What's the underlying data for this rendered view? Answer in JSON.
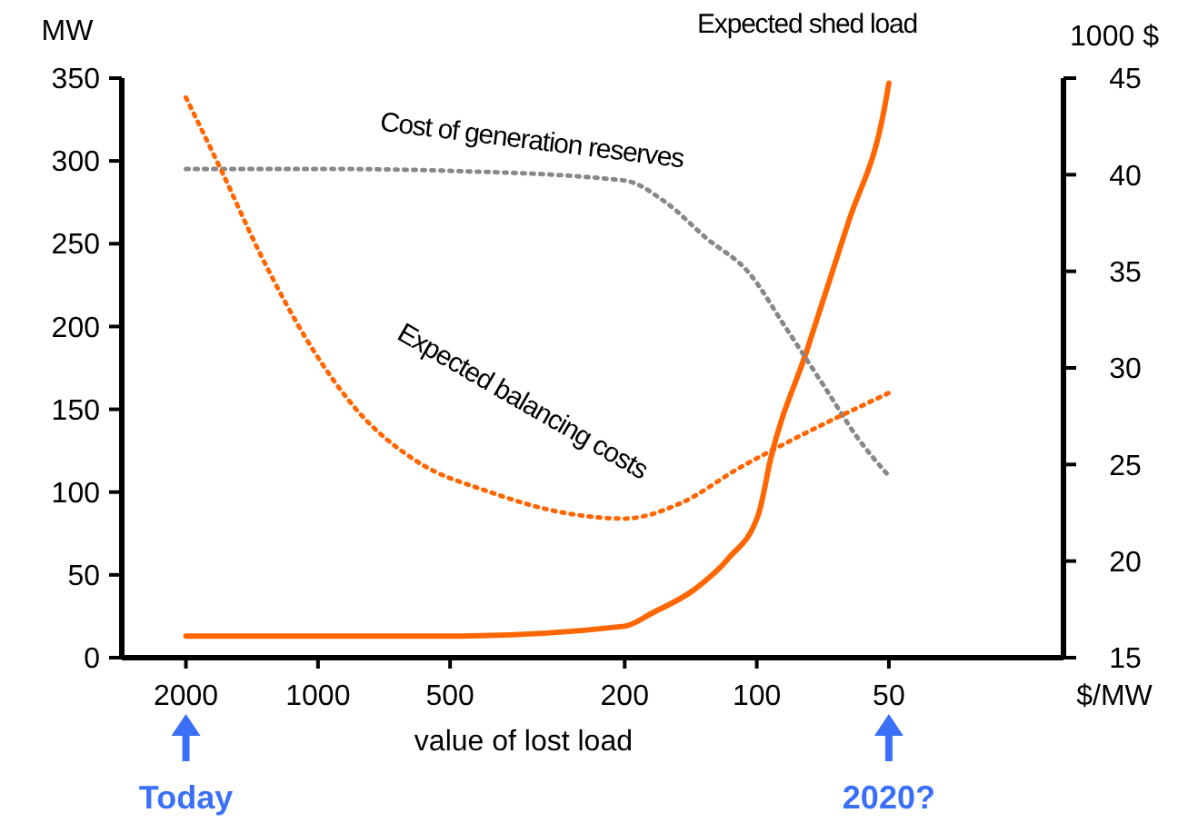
{
  "chart_data": {
    "type": "line",
    "xlabel": "value of lost load",
    "ylabel": "MW",
    "y2label": "1000 $",
    "log": "x",
    "xlim": [
      2800,
      20
    ],
    "xticks": [
      2000,
      1000,
      500,
      200,
      100,
      50
    ],
    "ylim": [
      0,
      350
    ],
    "yticks": [
      0,
      50,
      100,
      150,
      200,
      250,
      300,
      350
    ],
    "y2lim": [
      15,
      45
    ],
    "y2ticks": [
      15,
      20,
      25,
      30,
      35,
      40,
      45
    ],
    "grid": false,
    "legend": false,
    "marker": "none",
    "series": [
      {
        "name": "Expected shed load",
        "color": "#ff6600",
        "line_style": "solid",
        "x": [
          2000,
          1000,
          500,
          200,
          173,
          139,
          116,
          99,
          93,
          77,
          62,
          51,
          50
        ],
        "values": [
          13,
          13,
          13,
          19,
          27,
          41,
          60,
          87,
          120,
          185,
          262,
          334,
          347
        ]
      },
      {
        "name": "Cost of generation reserves",
        "color": "#888888",
        "line_style": "dotted",
        "axis": "y2",
        "x": [
          2000,
          1000,
          500,
          200,
          162,
          130,
          104,
          86,
          70,
          59,
          50
        ],
        "values": [
          40.3,
          40.3,
          40.2,
          39.7,
          38.6,
          36.7,
          34.9,
          32.1,
          29.0,
          26.4,
          24.4
        ]
      },
      {
        "name": "Expected balancing costs",
        "color": "#ff6600",
        "line_style": "dotted",
        "axis": "y2",
        "x": [
          2000,
          1659,
          1347,
          1057,
          807,
          599,
          409,
          275,
          200,
          149,
          110,
          81,
          50
        ],
        "values": [
          44.0,
          40.2,
          35.8,
          31.4,
          27.7,
          25.2,
          23.6,
          22.5,
          22.2,
          23.0,
          24.8,
          26.4,
          28.7
        ]
      }
    ],
    "annotations": [
      "Today",
      "2020?",
      "$/MW"
    ]
  }
}
